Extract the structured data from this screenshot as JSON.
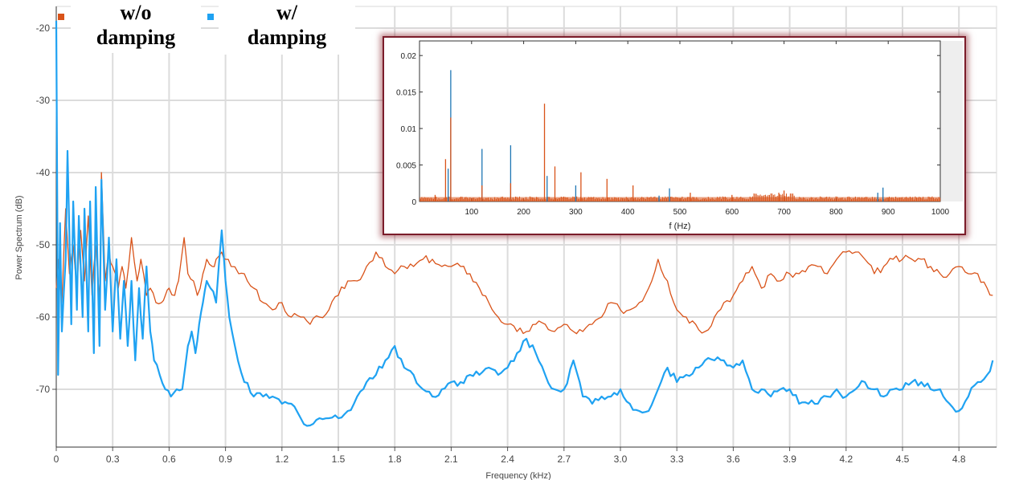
{
  "chart_data": [
    {
      "type": "line",
      "title": "",
      "xlabel": "Frequency (kHz)",
      "ylabel": "Power Spectrum (dB)",
      "xlim": [
        0,
        5.0
      ],
      "ylim": [
        -78,
        -17
      ],
      "xticks": [
        "0",
        "0.3",
        "0.6",
        "0.9",
        "1.2",
        "1.5",
        "1.8",
        "2.1",
        "2.4",
        "2.7",
        "3.0",
        "3.3",
        "3.6",
        "3.9",
        "4.2",
        "4.5",
        "4.8"
      ],
      "yticks": [
        "-20",
        "-30",
        "-40",
        "-50",
        "-60",
        "-70"
      ],
      "grid": true,
      "legend": "top-left",
      "series": [
        {
          "name": "w/o damping",
          "color": "#d95319",
          "x": [
            0,
            0.01,
            0.03,
            0.05,
            0.07,
            0.09,
            0.11,
            0.13,
            0.15,
            0.17,
            0.19,
            0.21,
            0.23,
            0.24,
            0.26,
            0.28,
            0.3,
            0.33,
            0.35,
            0.37,
            0.4,
            0.43,
            0.45,
            0.48,
            0.5,
            0.53,
            0.56,
            0.58,
            0.6,
            0.63,
            0.65,
            0.68,
            0.7,
            0.73,
            0.75,
            0.78,
            0.8,
            0.83,
            0.85,
            0.88,
            0.9,
            0.93,
            0.97,
            1.0,
            1.05,
            1.1,
            1.15,
            1.2,
            1.25,
            1.3,
            1.35,
            1.4,
            1.45,
            1.5,
            1.55,
            1.6,
            1.65,
            1.7,
            1.75,
            1.8,
            1.85,
            1.9,
            1.95,
            2.0,
            2.05,
            2.1,
            2.15,
            2.2,
            2.25,
            2.3,
            2.35,
            2.4,
            2.45,
            2.5,
            2.55,
            2.6,
            2.65,
            2.7,
            2.75,
            2.8,
            2.85,
            2.9,
            2.95,
            3.0,
            3.05,
            3.1,
            3.15,
            3.2,
            3.25,
            3.3,
            3.35,
            3.4,
            3.45,
            3.5,
            3.55,
            3.6,
            3.65,
            3.7,
            3.75,
            3.8,
            3.85,
            3.9,
            3.95,
            4.0,
            4.05,
            4.1,
            4.15,
            4.2,
            4.25,
            4.3,
            4.35,
            4.4,
            4.45,
            4.5,
            4.55,
            4.6,
            4.65,
            4.7,
            4.75,
            4.8,
            4.85,
            4.9,
            4.95,
            4.98
          ],
          "values": [
            -56,
            -52,
            -58,
            -45,
            -54,
            -50,
            -56,
            -48,
            -55,
            -46,
            -57,
            -50,
            -58,
            -40,
            -55,
            -51,
            -53,
            -56,
            -53,
            -56,
            -49,
            -55,
            -52,
            -57,
            -56,
            -58,
            -58,
            -57,
            -56,
            -57,
            -55,
            -49,
            -54,
            -55,
            -57,
            -54,
            -52,
            -53,
            -52,
            -51,
            -52,
            -53,
            -54,
            -54,
            -56,
            -58,
            -59,
            -58,
            -60,
            -60,
            -61,
            -60,
            -59,
            -57,
            -55,
            -55,
            -53,
            -51,
            -53,
            -54,
            -53,
            -53,
            -52,
            -52,
            -53,
            -53,
            -53,
            -54,
            -56,
            -58,
            -60,
            -61,
            -62,
            -62,
            -61,
            -61,
            -62,
            -61,
            -62,
            -62,
            -61,
            -60,
            -58,
            -59,
            -59,
            -58,
            -56,
            -52,
            -55,
            -59,
            -60,
            -61,
            -62,
            -60,
            -58,
            -57,
            -55,
            -53,
            -56,
            -54,
            -55,
            -54,
            -54,
            -53,
            -53,
            -54,
            -52,
            -51,
            -51,
            -52,
            -54,
            -53,
            -52,
            -52,
            -52,
            -52,
            -53,
            -54,
            -54,
            -53,
            -54,
            -54,
            -56,
            -57
          ]
        },
        {
          "name": "w/ damping",
          "color": "#1fa2f2",
          "x": [
            0,
            0.01,
            0.02,
            0.03,
            0.05,
            0.06,
            0.08,
            0.09,
            0.11,
            0.12,
            0.14,
            0.15,
            0.17,
            0.18,
            0.2,
            0.21,
            0.23,
            0.24,
            0.26,
            0.28,
            0.3,
            0.32,
            0.34,
            0.36,
            0.38,
            0.4,
            0.42,
            0.44,
            0.46,
            0.48,
            0.5,
            0.52,
            0.55,
            0.58,
            0.61,
            0.64,
            0.67,
            0.7,
            0.72,
            0.74,
            0.76,
            0.78,
            0.8,
            0.82,
            0.85,
            0.88,
            0.9,
            0.92,
            0.95,
            1.0,
            1.05,
            1.1,
            1.15,
            1.2,
            1.25,
            1.3,
            1.35,
            1.4,
            1.45,
            1.5,
            1.55,
            1.6,
            1.65,
            1.7,
            1.75,
            1.8,
            1.85,
            1.9,
            1.95,
            2.0,
            2.05,
            2.1,
            2.15,
            2.2,
            2.25,
            2.3,
            2.35,
            2.4,
            2.45,
            2.5,
            2.55,
            2.6,
            2.65,
            2.7,
            2.75,
            2.8,
            2.85,
            2.9,
            2.95,
            3.0,
            3.05,
            3.1,
            3.15,
            3.2,
            3.25,
            3.3,
            3.35,
            3.4,
            3.45,
            3.5,
            3.55,
            3.6,
            3.65,
            3.7,
            3.75,
            3.8,
            3.85,
            3.9,
            3.95,
            4.0,
            4.05,
            4.1,
            4.15,
            4.2,
            4.25,
            4.3,
            4.35,
            4.4,
            4.45,
            4.5,
            4.55,
            4.6,
            4.65,
            4.7,
            4.75,
            4.8,
            4.85,
            4.9,
            4.95,
            4.98
          ],
          "values": [
            -19,
            -68,
            -47,
            -62,
            -52,
            -37,
            -61,
            -44,
            -59,
            -46,
            -60,
            -45,
            -62,
            -44,
            -65,
            -42,
            -64,
            -41,
            -59,
            -49,
            -62,
            -52,
            -63,
            -55,
            -64,
            -55,
            -66,
            -56,
            -63,
            -53,
            -62,
            -66,
            -68,
            -70,
            -71,
            -70,
            -70,
            -64,
            -62,
            -65,
            -61,
            -58,
            -55,
            -56,
            -58,
            -48,
            -55,
            -60,
            -64,
            -69,
            -71,
            -71,
            -71,
            -72,
            -72,
            -74,
            -75,
            -74,
            -74,
            -74,
            -73,
            -71,
            -69,
            -68,
            -66,
            -64,
            -67,
            -68,
            -70,
            -71,
            -70,
            -69,
            -69,
            -68,
            -68,
            -67,
            -68,
            -67,
            -65,
            -63,
            -65,
            -68,
            -70,
            -70,
            -66,
            -71,
            -72,
            -71,
            -71,
            -70,
            -72,
            -73,
            -73,
            -70,
            -67,
            -69,
            -68,
            -67,
            -66,
            -66,
            -66,
            -67,
            -66,
            -70,
            -70,
            -71,
            -70,
            -70,
            -72,
            -72,
            -72,
            -71,
            -70,
            -71,
            -70,
            -69,
            -70,
            -71,
            -70,
            -70,
            -69,
            -69,
            -70,
            -70,
            -72,
            -73,
            -71,
            -69,
            -68,
            -66
          ]
        }
      ]
    },
    {
      "type": "line",
      "title": "",
      "xlabel": "f (Hz)",
      "ylabel": "",
      "xlim": [
        0,
        1000
      ],
      "ylim": [
        0,
        0.022
      ],
      "xticks": [
        "100",
        "200",
        "300",
        "400",
        "500",
        "600",
        "700",
        "800",
        "900",
        "1000"
      ],
      "yticks": [
        "0",
        "0.005",
        "0.01",
        "0.015",
        "0.02"
      ],
      "grid": false,
      "series": [
        {
          "color": "#1f77b4",
          "x": [
            55,
            60,
            120,
            175,
            245,
            300,
            460,
            480,
            880,
            890
          ],
          "values": [
            0.0045,
            0.018,
            0.0072,
            0.0077,
            0.0035,
            0.0022,
            0.0008,
            0.0018,
            0.0012,
            0.0019
          ]
        },
        {
          "color": "#d95319",
          "x": [
            30,
            50,
            60,
            120,
            175,
            240,
            260,
            310,
            360,
            410,
            520,
            600,
            690,
            700
          ],
          "values": [
            0.0009,
            0.0058,
            0.0115,
            0.0022,
            0.0025,
            0.0134,
            0.0048,
            0.004,
            0.0031,
            0.0022,
            0.0012,
            0.0009,
            0.0012,
            0.0015
          ]
        }
      ]
    }
  ],
  "legend": {
    "items": [
      {
        "label": "w/o\ndamping",
        "color": "#d95319"
      },
      {
        "label": "w/\ndamping",
        "color": "#1fa2f2"
      }
    ]
  }
}
